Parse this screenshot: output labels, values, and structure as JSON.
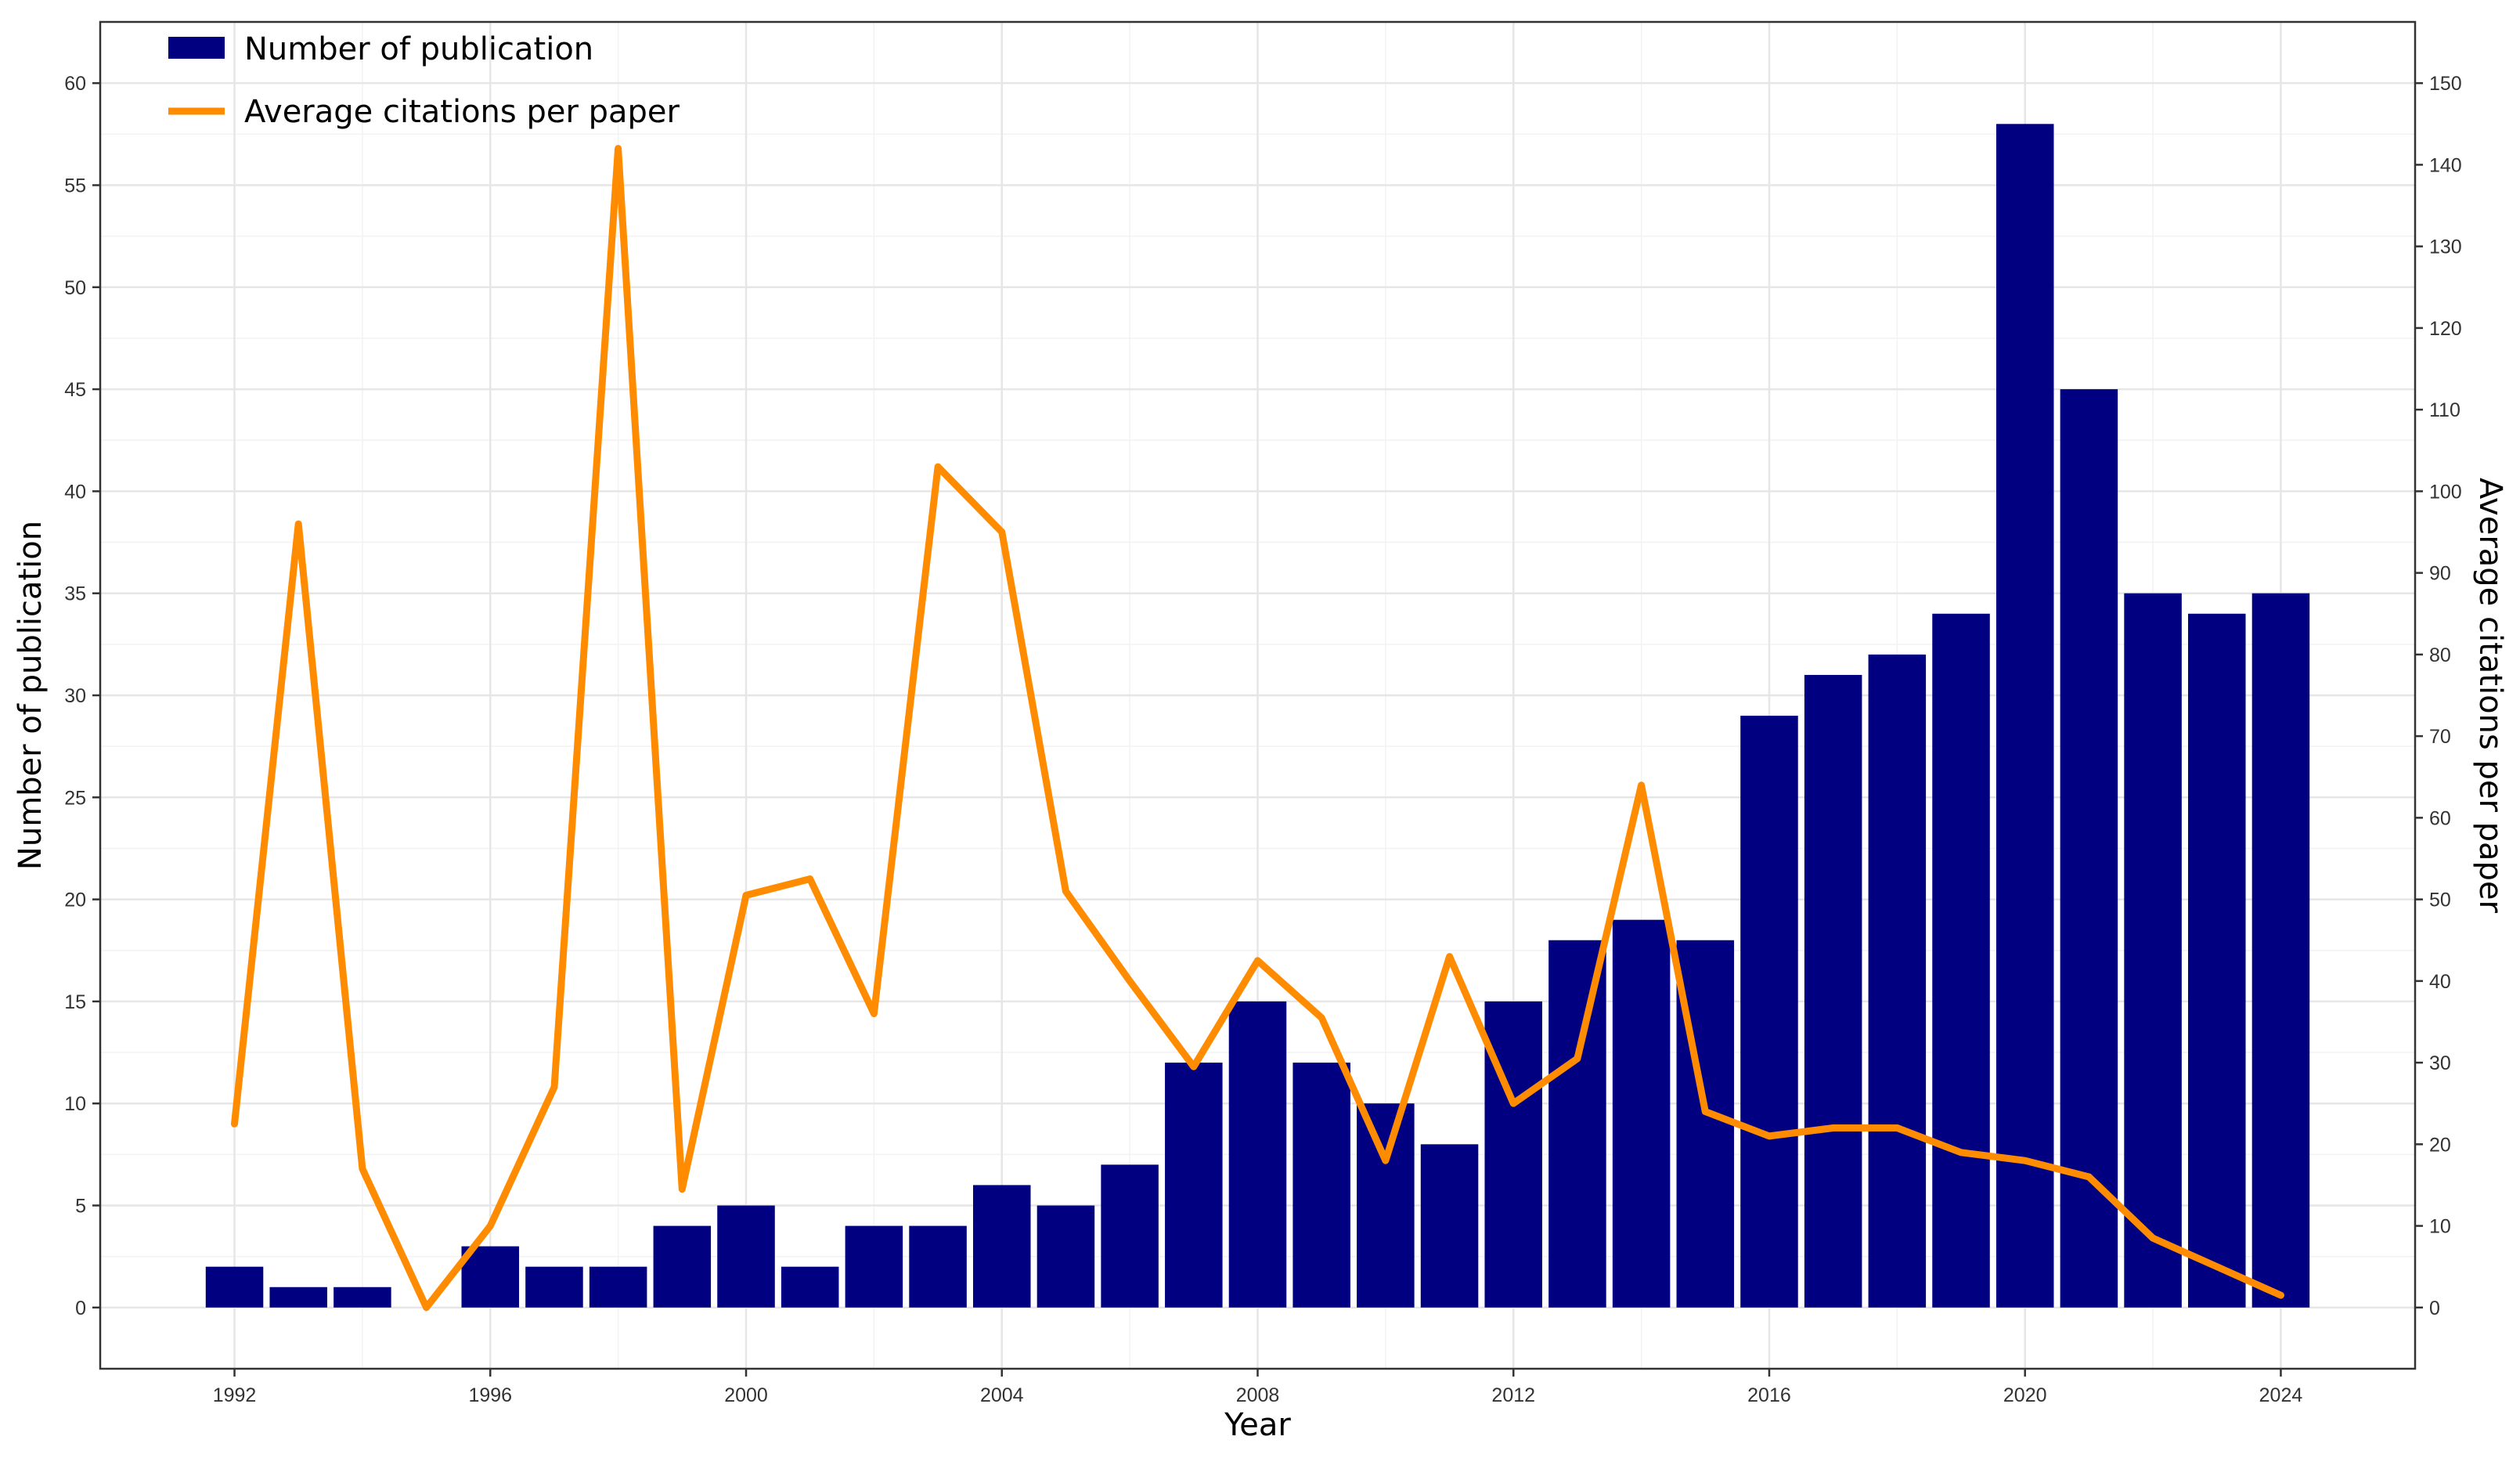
{
  "chart_data": {
    "type": "bar",
    "x_label": "Year",
    "y_label_left": "Number of publication",
    "y_label_right": "Average citations per paper",
    "x_ticks": [
      1992,
      1996,
      2000,
      2004,
      2008,
      2012,
      2016,
      2020,
      2024
    ],
    "y_left_ticks": [
      0,
      5,
      10,
      15,
      20,
      25,
      30,
      35,
      40,
      45,
      50,
      55,
      60
    ],
    "y_right_ticks": [
      0,
      10,
      20,
      30,
      40,
      50,
      60,
      70,
      80,
      90,
      100,
      110,
      120,
      130,
      140,
      150
    ],
    "y_left_range": [
      -3,
      63
    ],
    "y_right_range": [
      -7.5,
      157.5
    ],
    "x_range": [
      1989.9,
      2026.1
    ],
    "grid": true,
    "legend_position": "top-left",
    "colors": {
      "bars": "#000080",
      "line": "#FF8C00"
    },
    "series": [
      {
        "name": "Number of publication",
        "type": "bar",
        "axis": "left",
        "x": [
          1992,
          1993,
          1994,
          1995,
          1996,
          1997,
          1998,
          1999,
          2000,
          2001,
          2002,
          2003,
          2004,
          2005,
          2006,
          2007,
          2008,
          2009,
          2010,
          2011,
          2012,
          2013,
          2014,
          2015,
          2016,
          2017,
          2018,
          2019,
          2020,
          2021,
          2022,
          2023,
          2024
        ],
        "values": [
          2,
          1,
          1,
          0,
          3,
          2,
          2,
          4,
          5,
          2,
          4,
          4,
          6,
          5,
          7,
          12,
          15,
          12,
          10,
          8,
          15,
          18,
          19,
          18,
          29,
          31,
          32,
          34,
          58,
          45,
          35,
          34,
          35
        ]
      },
      {
        "name": "Average citations per paper",
        "type": "line",
        "axis": "right",
        "x": [
          1992,
          1993,
          1994,
          1995,
          1996,
          1997,
          1998,
          1999,
          2000,
          2001,
          2002,
          2003,
          2004,
          2005,
          2006,
          2007,
          2008,
          2009,
          2010,
          2011,
          2012,
          2013,
          2014,
          2015,
          2016,
          2017,
          2018,
          2019,
          2020,
          2021,
          2022,
          2023,
          2024
        ],
        "values": [
          22.5,
          96,
          17,
          0,
          10,
          27,
          142,
          14.5,
          50.5,
          52.5,
          36,
          103,
          95,
          51,
          40,
          29.5,
          42.5,
          35.5,
          18,
          43,
          25,
          30.5,
          64,
          24,
          21,
          22,
          22,
          19,
          18,
          16,
          8.5,
          5,
          1.5
        ]
      }
    ]
  }
}
